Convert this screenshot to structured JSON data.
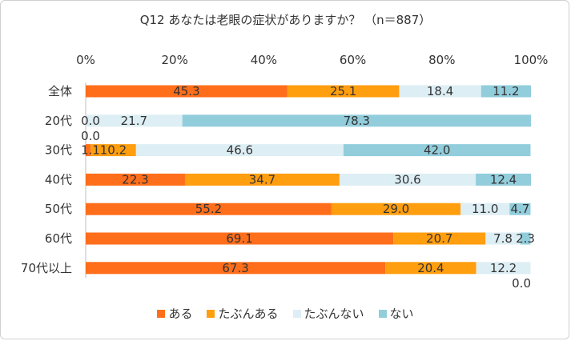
{
  "chart_data": {
    "type": "bar",
    "stacked": true,
    "orientation": "horizontal",
    "title": "Q12 あなたは老眼の症状がありますか？ （n＝887）",
    "xlim": [
      0,
      100
    ],
    "x_ticks": [
      "0%",
      "20%",
      "40%",
      "60%",
      "80%",
      "100%"
    ],
    "categories": [
      "全体",
      "20代",
      "30代",
      "40代",
      "50代",
      "60代",
      "70代以上"
    ],
    "series": [
      {
        "name": "ある",
        "color": "#FF6E1B",
        "values": [
          45.3,
          0.0,
          1.1,
          22.3,
          55.2,
          69.1,
          67.3
        ]
      },
      {
        "name": "たぶんある",
        "color": "#FF9E0F",
        "values": [
          25.1,
          0.0,
          10.2,
          34.7,
          29.0,
          20.7,
          20.4
        ]
      },
      {
        "name": "たぶんない",
        "color": "#DDEEF4",
        "values": [
          18.4,
          21.7,
          46.6,
          30.6,
          11.0,
          7.8,
          12.2
        ]
      },
      {
        "name": "ない",
        "color": "#92CDDC",
        "values": [
          11.2,
          78.3,
          42.0,
          12.4,
          4.7,
          2.3,
          0.0
        ]
      }
    ],
    "legend_position": "bottom",
    "grid": false
  }
}
